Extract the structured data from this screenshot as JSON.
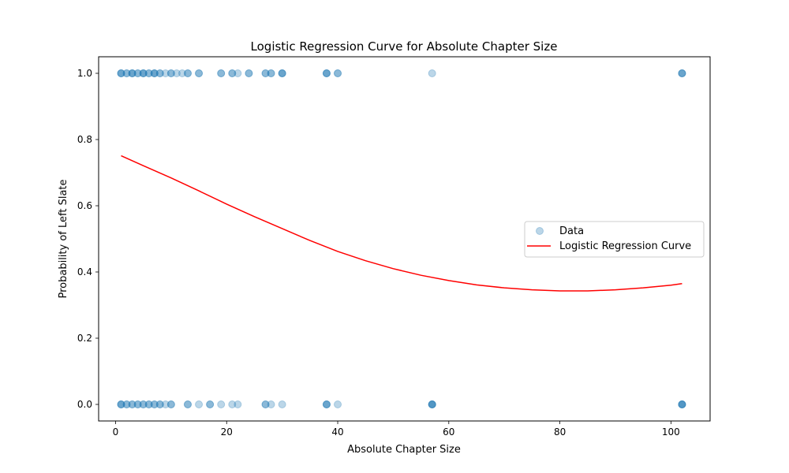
{
  "chart_data": {
    "type": "scatter",
    "title": "Logistic Regression Curve for Absolute Chapter Size",
    "xlabel": "Absolute Chapter Size",
    "ylabel": "Probability of Left Slate",
    "xlim": [
      -3.05,
      107.05
    ],
    "ylim": [
      -0.05,
      1.05
    ],
    "x_ticks": [
      0,
      20,
      40,
      60,
      80,
      100
    ],
    "y_ticks": [
      0.0,
      0.2,
      0.4,
      0.6,
      0.8,
      1.0
    ],
    "x_tick_labels": [
      "0",
      "20",
      "40",
      "60",
      "80",
      "100"
    ],
    "y_tick_labels": [
      "0.0",
      "0.2",
      "0.4",
      "0.6",
      "0.8",
      "1.0"
    ],
    "legend_position": "center-right",
    "series": [
      {
        "name": "Data",
        "kind": "scatter",
        "color": "#1f77b4",
        "alpha": 0.3,
        "x": [
          1,
          1,
          1,
          2,
          2,
          3,
          3,
          3,
          4,
          4,
          5,
          5,
          5,
          6,
          6,
          7,
          7,
          7,
          8,
          8,
          9,
          10,
          10,
          11,
          12,
          13,
          13,
          15,
          15,
          19,
          19,
          21,
          21,
          22,
          24,
          24,
          27,
          27,
          28,
          28,
          30,
          30,
          30,
          38,
          38,
          38,
          40,
          40,
          57,
          102,
          102,
          102,
          1,
          1,
          1,
          2,
          2,
          3,
          3,
          4,
          4,
          5,
          5,
          6,
          6,
          7,
          7,
          8,
          8,
          9,
          10,
          10,
          13,
          13,
          15,
          17,
          17,
          19,
          21,
          22,
          27,
          27,
          28,
          30,
          38,
          38,
          38,
          40,
          57,
          57,
          57,
          57,
          102,
          102,
          102,
          102
        ],
        "y": [
          1,
          1,
          1,
          1,
          1,
          1,
          1,
          1,
          1,
          1,
          1,
          1,
          1,
          1,
          1,
          1,
          1,
          1,
          1,
          1,
          1,
          1,
          1,
          1,
          1,
          1,
          1,
          1,
          1,
          1,
          1,
          1,
          1,
          1,
          1,
          1,
          1,
          1,
          1,
          1,
          1,
          1,
          1,
          1,
          1,
          1,
          1,
          1,
          1,
          1,
          1,
          1,
          0,
          0,
          0,
          0,
          0,
          0,
          0,
          0,
          0,
          0,
          0,
          0,
          0,
          0,
          0,
          0,
          0,
          0,
          0,
          0,
          0,
          0,
          0,
          0,
          0,
          0,
          0,
          0,
          0,
          0,
          0,
          0,
          0,
          0,
          0,
          0,
          0,
          0,
          0,
          0,
          0,
          0,
          0,
          0
        ]
      },
      {
        "name": "Logistic Regression Curve",
        "kind": "line",
        "color": "#ff0000",
        "x": [
          1,
          5,
          10,
          15,
          20,
          25,
          30,
          35,
          40,
          45,
          50,
          55,
          60,
          65,
          70,
          75,
          80,
          85,
          90,
          95,
          100,
          102
        ],
        "y": [
          0.751,
          0.721,
          0.684,
          0.645,
          0.605,
          0.567,
          0.531,
          0.495,
          0.462,
          0.434,
          0.41,
          0.39,
          0.374,
          0.361,
          0.352,
          0.346,
          0.343,
          0.343,
          0.346,
          0.352,
          0.36,
          0.365
        ]
      }
    ]
  }
}
